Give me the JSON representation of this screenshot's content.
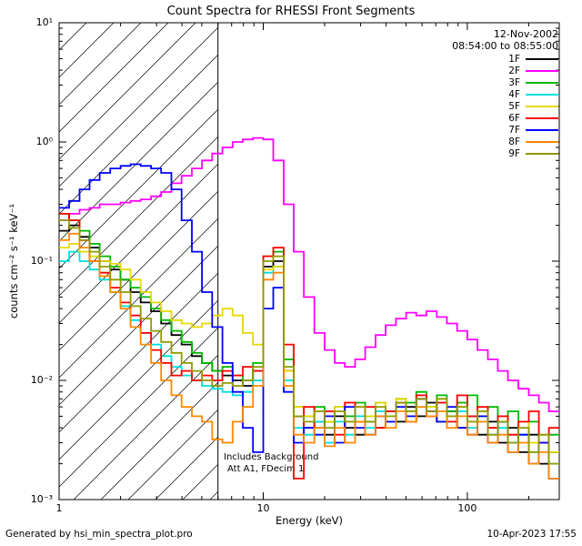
{
  "header": {
    "title": "Count Spectra for RHESSI Front Segments"
  },
  "annotations": {
    "date": "12-Nov-2002",
    "time_range": "08:54:00 to 08:55:00",
    "background_note": "Includes Background",
    "att_note": "Att A1, FDecim 1"
  },
  "axes": {
    "xlabel": "Energy (keV)",
    "ylabel": "counts cm⁻² s⁻¹ keV⁻¹",
    "x_ticks": [
      {
        "label": "1",
        "value": 1
      },
      {
        "label": "10",
        "value": 10
      },
      {
        "label": "100",
        "value": 100
      }
    ],
    "y_ticks": [
      {
        "label": "10¹",
        "value": 10
      },
      {
        "label": "10⁰",
        "value": 1
      },
      {
        "label": "10⁻¹",
        "value": 0.1
      },
      {
        "label": "10⁻²",
        "value": 0.01
      },
      {
        "label": "10⁻³",
        "value": 0.001
      }
    ]
  },
  "footer": {
    "generated_by": "Generated by hsi_min_spectra_plot.pro",
    "datetime": "10-Apr-2023 17:55"
  },
  "chart_data": {
    "type": "line",
    "mode": "step-histogram",
    "title": "Count Spectra for RHESSI Front Segments",
    "xlabel": "Energy (keV)",
    "ylabel": "counts cm⁻² s⁻¹ keV⁻¹",
    "x_scale": "log",
    "y_scale": "log",
    "xlim": [
      1,
      282
    ],
    "ylim": [
      0.001,
      10
    ],
    "grid": false,
    "legend_position": "top-right-inside",
    "hatched_low_energy_region_keV": [
      1,
      6
    ],
    "attenuator_line_keV": 6,
    "energy_bin_edges_keV": [
      1.0,
      1.12,
      1.26,
      1.41,
      1.58,
      1.78,
      2.0,
      2.24,
      2.51,
      2.82,
      3.16,
      3.55,
      3.98,
      4.47,
      5.01,
      5.62,
      6.31,
      7.08,
      7.94,
      8.91,
      10.0,
      11.2,
      12.6,
      14.1,
      15.8,
      17.8,
      20.0,
      22.4,
      25.1,
      28.2,
      31.6,
      35.5,
      39.8,
      44.7,
      50.1,
      56.2,
      63.1,
      70.8,
      79.4,
      89.1,
      100,
      112,
      126,
      141,
      158,
      178,
      200,
      224,
      251,
      282
    ],
    "series": [
      {
        "name": "1F",
        "color": "#000000",
        "values": [
          0.18,
          0.2,
          0.16,
          0.13,
          0.1,
          0.085,
          0.07,
          0.055,
          0.045,
          0.038,
          0.03,
          0.024,
          0.02,
          0.016,
          0.014,
          0.012,
          0.011,
          0.01,
          0.009,
          0.012,
          0.09,
          0.1,
          0.012,
          0.005,
          0.004,
          0.0045,
          0.0035,
          0.005,
          0.004,
          0.0035,
          0.0045,
          0.004,
          0.0055,
          0.0045,
          0.006,
          0.005,
          0.0065,
          0.0045,
          0.0055,
          0.004,
          0.005,
          0.0035,
          0.0045,
          0.003,
          0.004,
          0.0025,
          0.0035,
          0.002,
          0.0025
        ]
      },
      {
        "name": "2F",
        "color": "#ff00ff",
        "values": [
          0.22,
          0.25,
          0.27,
          0.28,
          0.3,
          0.3,
          0.31,
          0.32,
          0.33,
          0.35,
          0.38,
          0.45,
          0.52,
          0.6,
          0.7,
          0.8,
          0.9,
          1.0,
          1.05,
          1.08,
          1.05,
          0.7,
          0.3,
          0.12,
          0.05,
          0.025,
          0.018,
          0.014,
          0.013,
          0.015,
          0.019,
          0.024,
          0.029,
          0.033,
          0.037,
          0.035,
          0.038,
          0.034,
          0.03,
          0.026,
          0.022,
          0.018,
          0.015,
          0.012,
          0.01,
          0.0085,
          0.0075,
          0.0065,
          0.0055
        ]
      },
      {
        "name": "3F",
        "color": "#00b800",
        "values": [
          0.25,
          0.22,
          0.18,
          0.14,
          0.11,
          0.09,
          0.07,
          0.06,
          0.05,
          0.04,
          0.032,
          0.026,
          0.021,
          0.017,
          0.014,
          0.012,
          0.013,
          0.011,
          0.01,
          0.014,
          0.11,
          0.12,
          0.015,
          0.006,
          0.005,
          0.006,
          0.0045,
          0.006,
          0.005,
          0.0065,
          0.005,
          0.0065,
          0.0055,
          0.007,
          0.0065,
          0.008,
          0.006,
          0.0075,
          0.0055,
          0.0065,
          0.0075,
          0.005,
          0.006,
          0.0045,
          0.0055,
          0.0035,
          0.0045,
          0.003,
          0.0035
        ]
      },
      {
        "name": "4F",
        "color": "#00dede",
        "values": [
          0.1,
          0.12,
          0.1,
          0.085,
          0.07,
          0.055,
          0.042,
          0.032,
          0.025,
          0.02,
          0.016,
          0.013,
          0.011,
          0.01,
          0.009,
          0.0085,
          0.008,
          0.0075,
          0.008,
          0.01,
          0.08,
          0.09,
          0.01,
          0.004,
          0.0035,
          0.0045,
          0.003,
          0.0045,
          0.0035,
          0.005,
          0.004,
          0.0055,
          0.0045,
          0.0065,
          0.005,
          0.007,
          0.0055,
          0.0065,
          0.0045,
          0.0055,
          0.004,
          0.0045,
          0.0035,
          0.004,
          0.003,
          0.0035,
          0.0025,
          0.003,
          0.002
        ]
      },
      {
        "name": "5F",
        "color": "#e6d900",
        "values": [
          0.13,
          0.14,
          0.12,
          0.11,
          0.1,
          0.095,
          0.085,
          0.07,
          0.055,
          0.045,
          0.038,
          0.032,
          0.03,
          0.028,
          0.03,
          0.035,
          0.04,
          0.035,
          0.025,
          0.02,
          0.085,
          0.09,
          0.012,
          0.006,
          0.005,
          0.0055,
          0.0045,
          0.006,
          0.0045,
          0.006,
          0.005,
          0.0065,
          0.005,
          0.007,
          0.0055,
          0.0075,
          0.006,
          0.007,
          0.005,
          0.006,
          0.0045,
          0.0055,
          0.004,
          0.005,
          0.0035,
          0.0045,
          0.003,
          0.0035,
          0.0025
        ]
      },
      {
        "name": "6F",
        "color": "#ff0000",
        "values": [
          0.25,
          0.22,
          0.15,
          0.1,
          0.08,
          0.06,
          0.045,
          0.035,
          0.025,
          0.018,
          0.014,
          0.011,
          0.012,
          0.01,
          0.011,
          0.01,
          0.012,
          0.011,
          0.013,
          0.012,
          0.11,
          0.13,
          0.02,
          0.0015,
          0.006,
          0.004,
          0.0055,
          0.0035,
          0.0065,
          0.0045,
          0.006,
          0.004,
          0.0055,
          0.0065,
          0.0045,
          0.0075,
          0.005,
          0.0065,
          0.0045,
          0.0075,
          0.005,
          0.006,
          0.004,
          0.005,
          0.0035,
          0.0045,
          0.0055,
          0.003,
          0.004
        ]
      },
      {
        "name": "7F",
        "color": "#0000ff",
        "values": [
          0.28,
          0.32,
          0.4,
          0.48,
          0.55,
          0.6,
          0.63,
          0.65,
          0.63,
          0.6,
          0.55,
          0.4,
          0.22,
          0.12,
          0.055,
          0.028,
          0.014,
          0.008,
          0.004,
          0.0025,
          0.04,
          0.06,
          0.008,
          0.003,
          0.004,
          0.0035,
          0.005,
          0.003,
          0.006,
          0.004,
          0.0035,
          0.005,
          0.0045,
          0.006,
          0.005,
          0.007,
          0.0055,
          0.0045,
          0.006,
          0.004,
          0.0035,
          0.005,
          0.003,
          0.0045,
          0.0025,
          0.0035,
          0.002,
          0.003,
          0.0015
        ]
      },
      {
        "name": "8F",
        "color": "#ff8800",
        "values": [
          0.15,
          0.17,
          0.13,
          0.1,
          0.075,
          0.055,
          0.04,
          0.028,
          0.02,
          0.014,
          0.01,
          0.0075,
          0.006,
          0.005,
          0.0045,
          0.0032,
          0.003,
          0.0045,
          0.006,
          0.009,
          0.07,
          0.08,
          0.009,
          0.0035,
          0.003,
          0.004,
          0.0028,
          0.004,
          0.003,
          0.0045,
          0.0035,
          0.005,
          0.004,
          0.0055,
          0.0045,
          0.006,
          0.005,
          0.0055,
          0.004,
          0.005,
          0.0035,
          0.0045,
          0.003,
          0.0035,
          0.0025,
          0.003,
          0.002,
          0.0025,
          0.0015
        ]
      },
      {
        "name": "9F",
        "color": "#909a00",
        "values": [
          0.22,
          0.19,
          0.15,
          0.12,
          0.09,
          0.07,
          0.055,
          0.042,
          0.033,
          0.026,
          0.021,
          0.017,
          0.014,
          0.012,
          0.01,
          0.009,
          0.0095,
          0.009,
          0.01,
          0.013,
          0.1,
          0.11,
          0.013,
          0.005,
          0.0045,
          0.0055,
          0.004,
          0.0055,
          0.0045,
          0.006,
          0.0045,
          0.006,
          0.005,
          0.0065,
          0.0055,
          0.007,
          0.0055,
          0.007,
          0.005,
          0.006,
          0.0045,
          0.0055,
          0.0035,
          0.0045,
          0.003,
          0.004,
          0.0025,
          0.0035,
          0.002
        ]
      }
    ]
  }
}
